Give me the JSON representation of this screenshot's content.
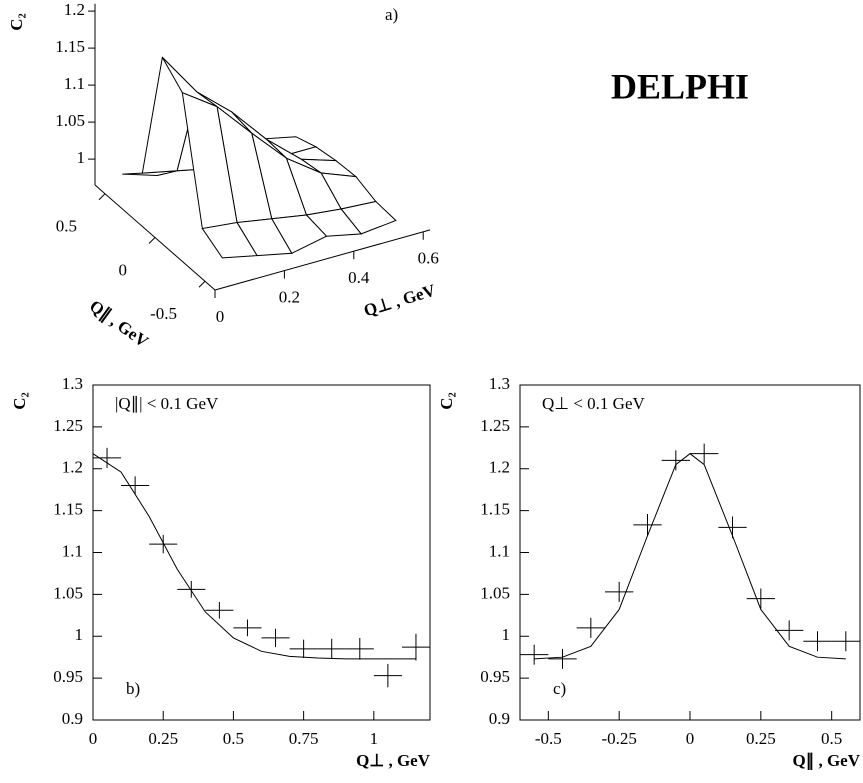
{
  "chart_data": [
    {
      "type": "surface",
      "label": "a)",
      "annotation": "DELPHI",
      "xlabel": "Q⊥ , GeV",
      "ylabel": "Q∥ , GeV",
      "zlabel": "C₂",
      "x": [
        0.05,
        0.15,
        0.25,
        0.35,
        0.45,
        0.55
      ],
      "y": [
        -0.5,
        -0.3,
        -0.1,
        0.1,
        0.3,
        0.5
      ],
      "z": [
        [
          0.99,
          0.98,
          0.97,
          0.98,
          0.97,
          0.975
        ],
        [
          1.006,
          1.001,
          0.993,
          0.985,
          0.98,
          0.977
        ],
        [
          1.166,
          1.134,
          1.085,
          1.038,
          1.005,
          0.987
        ],
        [
          1.19,
          1.13,
          1.09,
          1.04,
          1.0,
          0.985
        ],
        [
          1.01,
          1.0,
          0.99,
          0.985,
          0.98,
          0.98
        ],
        [
          0.985,
          0.97,
          0.98,
          0.975,
          0.98,
          0.97
        ]
      ],
      "xlim": [
        0,
        0.62
      ],
      "ylim": [
        -0.6,
        0.6
      ],
      "zlim": [
        0.965,
        1.21
      ],
      "xticks": [
        0,
        0.2,
        0.4,
        0.6
      ],
      "yticks": [
        -0.5,
        0,
        0.5
      ],
      "zticks": [
        1,
        1.05,
        1.1,
        1.15,
        1.2
      ]
    },
    {
      "type": "errorbar",
      "label": "b)",
      "annotation": "|Q∥| < 0.1 GeV",
      "xlabel": "Q⊥ , GeV",
      "ylabel": "C₂",
      "x": [
        0.05,
        0.15,
        0.25,
        0.35,
        0.45,
        0.55,
        0.65,
        0.75,
        0.85,
        0.95,
        1.05,
        1.15
      ],
      "values": [
        1.213,
        1.18,
        1.11,
        1.056,
        1.031,
        1.01,
        0.998,
        0.985,
        0.985,
        0.985,
        0.953,
        0.987
      ],
      "xerr": [
        0.05,
        0.05,
        0.05,
        0.05,
        0.05,
        0.05,
        0.05,
        0.05,
        0.05,
        0.05,
        0.05,
        0.05
      ],
      "yerr": [
        0.006,
        0.005,
        0.005,
        0.004,
        0.004,
        0.004,
        0.005,
        0.005,
        0.006,
        0.007,
        0.008,
        0.01
      ],
      "fit": {
        "x": [
          0,
          0.1,
          0.2,
          0.3,
          0.4,
          0.5,
          0.6,
          0.7,
          0.8,
          0.9,
          1.0,
          1.1,
          1.15
        ],
        "values": [
          1.218,
          1.196,
          1.143,
          1.08,
          1.029,
          0.998,
          0.982,
          0.976,
          0.974,
          0.973,
          0.973,
          0.973,
          0.973
        ]
      },
      "xlim": [
        0,
        1.2
      ],
      "ylim": [
        0.9,
        1.3
      ],
      "xticks": [
        0,
        0.25,
        0.5,
        0.75,
        1
      ],
      "yticks": [
        0.9,
        0.95,
        1,
        1.05,
        1.1,
        1.15,
        1.2,
        1.25,
        1.3
      ]
    },
    {
      "type": "errorbar",
      "label": "c)",
      "annotation": "Q⊥ < 0.1 GeV",
      "xlabel": "Q∥ , GeV",
      "ylabel": "C₂",
      "x": [
        -0.55,
        -0.45,
        -0.35,
        -0.25,
        -0.15,
        -0.05,
        0.05,
        0.15,
        0.25,
        0.35,
        0.45,
        0.55
      ],
      "values": [
        0.978,
        0.973,
        1.01,
        1.053,
        1.133,
        1.21,
        1.218,
        1.13,
        1.045,
        1.007,
        0.994,
        0.994
      ],
      "xerr": [
        0.05,
        0.05,
        0.05,
        0.05,
        0.05,
        0.05,
        0.05,
        0.05,
        0.05,
        0.05,
        0.05,
        0.05
      ],
      "yerr": [
        0.006,
        0.006,
        0.006,
        0.006,
        0.007,
        0.006,
        0.006,
        0.007,
        0.006,
        0.006,
        0.006,
        0.006
      ],
      "fit": {
        "x": [
          -0.55,
          -0.45,
          -0.35,
          -0.25,
          -0.15,
          -0.05,
          0,
          0.05,
          0.15,
          0.25,
          0.35,
          0.45,
          0.55
        ],
        "values": [
          0.973,
          0.975,
          0.988,
          1.032,
          1.12,
          1.205,
          1.218,
          1.205,
          1.12,
          1.032,
          0.988,
          0.975,
          0.973
        ]
      },
      "xlim": [
        -0.6,
        0.6
      ],
      "ylim": [
        0.9,
        1.3
      ],
      "xticks": [
        -0.5,
        -0.25,
        0,
        0.25,
        0.5
      ],
      "yticks": [
        0.9,
        0.95,
        1,
        1.05,
        1.1,
        1.15,
        1.2,
        1.25,
        1.3
      ]
    }
  ]
}
